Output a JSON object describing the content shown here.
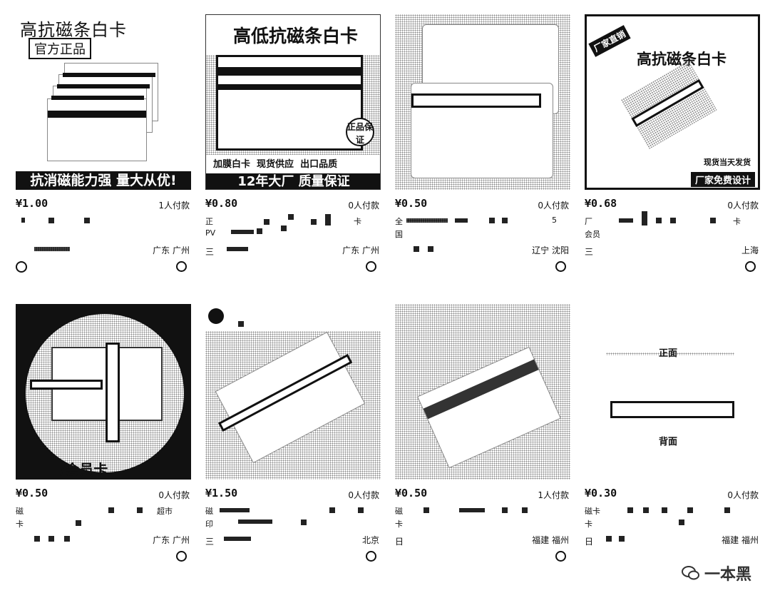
{
  "products": [
    {
      "price": "¥1.00",
      "sold": "1人付款",
      "location": "广东 广州",
      "banner_title": "高抗磁条白卡",
      "banner_sub": "官方正品",
      "banner_bottom": "抗消磁能力强 量大从优!"
    },
    {
      "price": "¥0.80",
      "sold": "0人付款",
      "location": "广东 广州",
      "title_fragment": "正",
      "title_fragment2": "PV",
      "title_end": "卡",
      "shop_prefix": "三",
      "banner_title": "高低抗磁条白卡",
      "banner_seal": "正品保证",
      "banner_features": "加膜白卡  现货供应  出口品质",
      "banner_bottom": "12年大厂 质量保证"
    },
    {
      "price": "¥0.50",
      "sold": "0人付款",
      "location": "辽宁 沈阳",
      "title_fragment": "全",
      "title_fragment2": "国",
      "title_end": "5"
    },
    {
      "price": "¥0.68",
      "sold": "0人付款",
      "location": "上海",
      "title_fragment": "厂",
      "title_fragment2": "会员",
      "title_end": "卡",
      "shop_prefix": "三",
      "banner_corner": "厂家直销",
      "banner_title": "高抗磁条白卡",
      "banner_note": "现货当天发货",
      "banner_bottom": "厂家免费设计"
    },
    {
      "price": "¥0.50",
      "sold": "0人付款",
      "location": "广东 广州",
      "title_fragment": "磁",
      "title_mid": "超市",
      "title_fragment2": "卡",
      "banner_bottom": "/会员卡"
    },
    {
      "price": "¥1.50",
      "sold": "0人付款",
      "location": "北京",
      "title_fragment": "磁",
      "title_fragment2": "印",
      "shop_prefix": "三"
    },
    {
      "price": "¥0.50",
      "sold": "1人付款",
      "location": "福建 福州",
      "title_fragment": "磁",
      "title_fragment2": "卡",
      "shop_prefix": "日"
    },
    {
      "price": "¥0.30",
      "sold": "0人付款",
      "location": "福建 福州",
      "title_fragment": "磁卡",
      "title_fragment2": "卡",
      "shop_prefix": "日",
      "label_front": "正面",
      "label_back": "背面"
    }
  ],
  "watermark": "一本黑",
  "icons": {
    "more": "circle-more-icon",
    "badge": "shop-badge-icon",
    "wechat": "wechat-icon"
  }
}
